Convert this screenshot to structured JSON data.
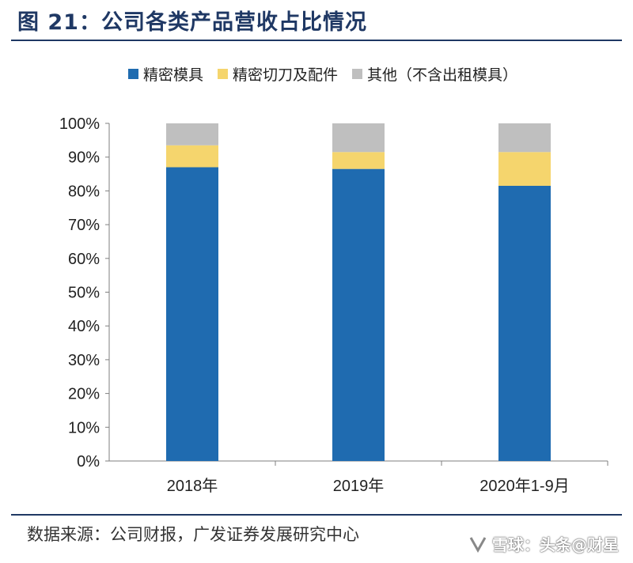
{
  "figure": {
    "title": "图 21：公司各类产品营收占比情况",
    "source": "数据来源：公司财报，广发证券发展研究中心",
    "watermark": "雪球：头条@财星"
  },
  "colors": {
    "series_1": "#1f6bb0",
    "series_2": "#f5d56d",
    "series_3": "#bfbfbf",
    "title": "#1f3864"
  },
  "chart_data": {
    "type": "bar",
    "stacked": true,
    "categories": [
      "2018年",
      "2019年",
      "2020年1-9月"
    ],
    "series": [
      {
        "name": "精密模具",
        "values": [
          87,
          86.5,
          81.5
        ]
      },
      {
        "name": "精密切刀及配件",
        "values": [
          6.5,
          5,
          10
        ]
      },
      {
        "name": "其他（不含出租模具）",
        "values": [
          6.5,
          8.5,
          8.5
        ]
      }
    ],
    "yticks": [
      "0%",
      "10%",
      "20%",
      "30%",
      "40%",
      "50%",
      "60%",
      "70%",
      "80%",
      "90%",
      "100%"
    ],
    "ylim": [
      0,
      100
    ],
    "legend_position": "top",
    "grid": false
  }
}
